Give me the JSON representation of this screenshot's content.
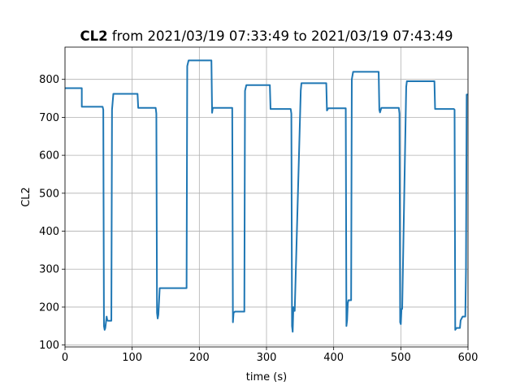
{
  "chart_data": {
    "type": "line",
    "title_bold": "CL2",
    "title_rest": " from 2021/03/19 07:33:49 to 2021/03/19 07:43:49",
    "xlabel": "time (s)",
    "ylabel": "CL2",
    "xlim": [
      0,
      600
    ],
    "ylim": [
      95,
      885
    ],
    "xticks": [
      0,
      100,
      200,
      300,
      400,
      500,
      600
    ],
    "yticks": [
      100,
      200,
      300,
      400,
      500,
      600,
      700,
      800
    ],
    "grid": true,
    "series_color": "#1f77b4",
    "series": [
      {
        "x": [
          0,
          25,
          25,
          56,
          57,
          58,
          59,
          60,
          61,
          62,
          63,
          64,
          69,
          70,
          72,
          75,
          108,
          109,
          135,
          136,
          137,
          138,
          139,
          141,
          181,
          182,
          184,
          218,
          219,
          220,
          222,
          249,
          250,
          251,
          253,
          267,
          268,
          270,
          305,
          306,
          308,
          336,
          337,
          338,
          339,
          340,
          341,
          342,
          351,
          352,
          354,
          389,
          390,
          392,
          418,
          419,
          420,
          421,
          422,
          426,
          427,
          429,
          467,
          468,
          469,
          471,
          497,
          498,
          499,
          500,
          501,
          502,
          508,
          509,
          511,
          550,
          551,
          553,
          579,
          580,
          581,
          583,
          588,
          589,
          592,
          596,
          597,
          598,
          600
        ],
        "y": [
          777,
          777,
          728,
          728,
          720,
          150,
          140,
          145,
          160,
          175,
          165,
          164,
          164,
          720,
          762,
          762,
          762,
          725,
          725,
          710,
          185,
          170,
          180,
          250,
          250,
          835,
          850,
          850,
          712,
          725,
          725,
          725,
          160,
          185,
          188,
          188,
          770,
          785,
          785,
          722,
          722,
          722,
          710,
          150,
          135,
          200,
          190,
          190,
          770,
          790,
          790,
          790,
          718,
          724,
          724,
          150,
          165,
          210,
          218,
          218,
          800,
          820,
          820,
          720,
          713,
          725,
          725,
          710,
          160,
          155,
          195,
          195,
          780,
          795,
          795,
          795,
          722,
          722,
          722,
          720,
          140,
          145,
          145,
          165,
          175,
          175,
          300,
          760,
          760
        ]
      }
    ]
  }
}
